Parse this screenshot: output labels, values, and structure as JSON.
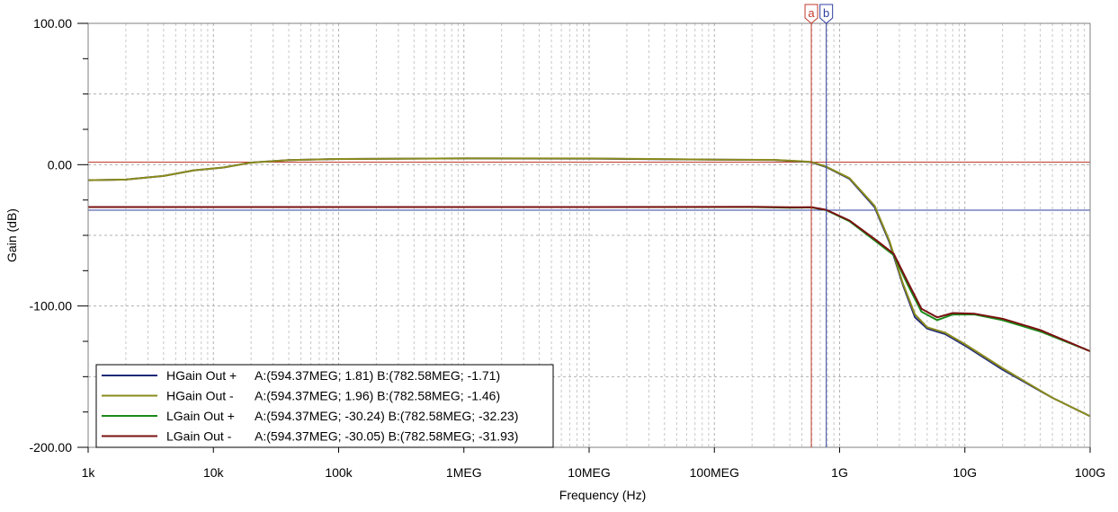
{
  "chart_data": {
    "type": "line",
    "xlabel": "Frequency (Hz)",
    "ylabel": "Gain (dB)",
    "xscale": "log",
    "xlim": [
      1000,
      100000000000
    ],
    "ylim": [
      -200,
      100
    ],
    "grid": true,
    "legend_position": "bottom-left",
    "x_ticks": [
      {
        "value": 1000,
        "label": "1k"
      },
      {
        "value": 10000,
        "label": "10k"
      },
      {
        "value": 100000,
        "label": "100k"
      },
      {
        "value": 1000000,
        "label": "1MEG"
      },
      {
        "value": 10000000,
        "label": "10MEG"
      },
      {
        "value": 100000000,
        "label": "100MEG"
      },
      {
        "value": 1000000000,
        "label": "1G"
      },
      {
        "value": 10000000000,
        "label": "10G"
      },
      {
        "value": 100000000000,
        "label": "100G"
      }
    ],
    "y_ticks": [
      {
        "value": 100,
        "label": "100.00"
      },
      {
        "value": 0,
        "label": "0.00"
      },
      {
        "value": -100,
        "label": "-100.00"
      },
      {
        "value": -200,
        "label": "-200.00"
      }
    ],
    "cursors": [
      {
        "name": "a",
        "x": 594370000,
        "y": 1.81,
        "color": "#c0392b"
      },
      {
        "name": "b",
        "x": 782580000,
        "y": -32.23,
        "color": "#2f3fa0"
      }
    ],
    "series": [
      {
        "name": "HGain Out +",
        "legend": "A:(594.37MEG; 1.81) B:(782.58MEG; -1.71)",
        "color": "#1f2a7a",
        "points": [
          [
            1000,
            -11
          ],
          [
            2000,
            -10.5
          ],
          [
            4000,
            -8
          ],
          [
            7000,
            -4
          ],
          [
            12000,
            -2
          ],
          [
            20000,
            1.5
          ],
          [
            40000,
            3.2
          ],
          [
            100000,
            4
          ],
          [
            1000000,
            4.4
          ],
          [
            10000000,
            4.3
          ],
          [
            100000000,
            3.5
          ],
          [
            300000000,
            3.3
          ],
          [
            594370000,
            1.81
          ],
          [
            782580000,
            -1.71
          ],
          [
            1200000000,
            -10
          ],
          [
            1900000000,
            -30
          ],
          [
            2500000000,
            -55
          ],
          [
            3200000000,
            -85
          ],
          [
            4000000000,
            -108
          ],
          [
            5000000000,
            -116
          ],
          [
            7000000000,
            -120
          ],
          [
            10000000000,
            -128
          ],
          [
            20000000000,
            -145
          ],
          [
            50000000000,
            -165
          ],
          [
            100000000000,
            -178
          ]
        ]
      },
      {
        "name": "HGain Out -",
        "legend": "A:(594.37MEG; 1.96) B:(782.58MEG; -1.46)",
        "color": "#8b8b1c",
        "points": [
          [
            1000,
            -11
          ],
          [
            2000,
            -10.5
          ],
          [
            4000,
            -8
          ],
          [
            7000,
            -4
          ],
          [
            12000,
            -2
          ],
          [
            20000,
            1.5
          ],
          [
            40000,
            3.2
          ],
          [
            100000,
            4
          ],
          [
            1000000,
            4.5
          ],
          [
            10000000,
            4.4
          ],
          [
            100000000,
            3.6
          ],
          [
            300000000,
            3.4
          ],
          [
            594370000,
            1.96
          ],
          [
            782580000,
            -1.46
          ],
          [
            1200000000,
            -9.5
          ],
          [
            1900000000,
            -29
          ],
          [
            2500000000,
            -54
          ],
          [
            3200000000,
            -84
          ],
          [
            4000000000,
            -106
          ],
          [
            5000000000,
            -115
          ],
          [
            7000000000,
            -119
          ],
          [
            10000000000,
            -127
          ],
          [
            20000000000,
            -144
          ],
          [
            50000000000,
            -165
          ],
          [
            100000000000,
            -178
          ]
        ]
      },
      {
        "name": "LGain Out +",
        "legend": "A:(594.37MEG; -30.24) B:(782.58MEG; -32.23)",
        "color": "#1a8a1a",
        "points": [
          [
            1000,
            -30
          ],
          [
            100000,
            -30
          ],
          [
            10000000,
            -30
          ],
          [
            200000000,
            -30
          ],
          [
            400000000,
            -30.5
          ],
          [
            594370000,
            -30.24
          ],
          [
            782580000,
            -32.23
          ],
          [
            1200000000,
            -40
          ],
          [
            2000000000,
            -55
          ],
          [
            2700000000,
            -64
          ],
          [
            3500000000,
            -85
          ],
          [
            4500000000,
            -104
          ],
          [
            6000000000,
            -110
          ],
          [
            8000000000,
            -106
          ],
          [
            12000000000,
            -106
          ],
          [
            20000000000,
            -110
          ],
          [
            40000000000,
            -118
          ],
          [
            100000000000,
            -132
          ]
        ]
      },
      {
        "name": "LGain Out -",
        "legend": "A:(594.37MEG; -30.05) B:(782.58MEG; -31.93)",
        "color": "#7a1010",
        "points": [
          [
            1000,
            -30
          ],
          [
            100000,
            -30
          ],
          [
            10000000,
            -30
          ],
          [
            200000000,
            -29.8
          ],
          [
            400000000,
            -30.2
          ],
          [
            594370000,
            -30.05
          ],
          [
            782580000,
            -31.93
          ],
          [
            1200000000,
            -39.5
          ],
          [
            2000000000,
            -54
          ],
          [
            2700000000,
            -63
          ],
          [
            3500000000,
            -83
          ],
          [
            4500000000,
            -102
          ],
          [
            6000000000,
            -108
          ],
          [
            8000000000,
            -105
          ],
          [
            12000000000,
            -105.5
          ],
          [
            20000000000,
            -109
          ],
          [
            40000000000,
            -117
          ],
          [
            100000000000,
            -132
          ]
        ]
      }
    ]
  }
}
